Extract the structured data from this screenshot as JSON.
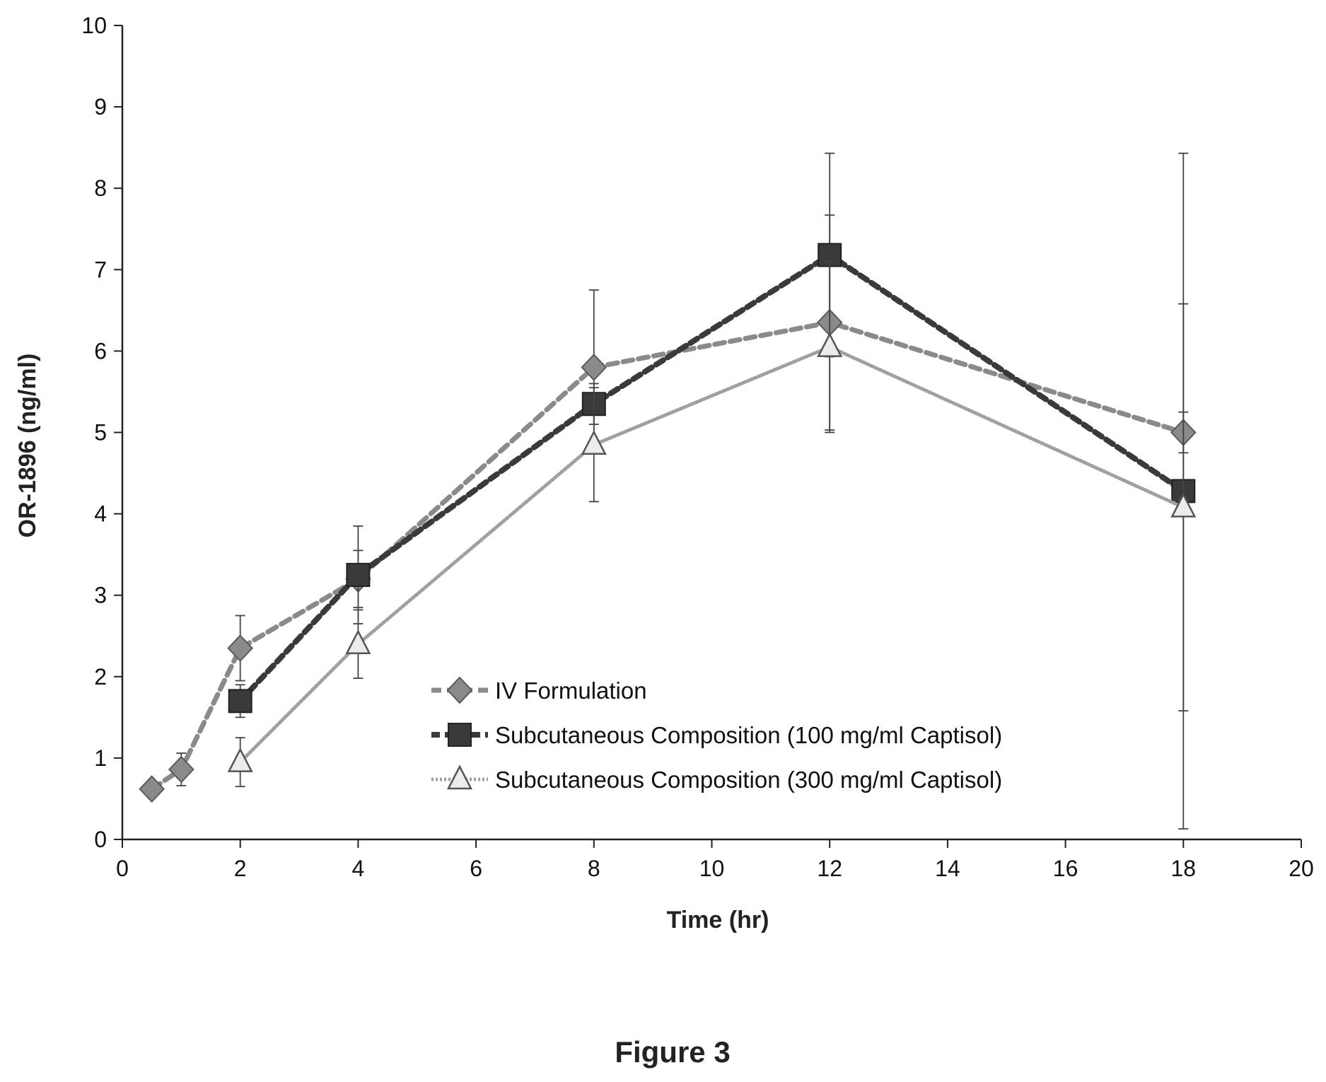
{
  "figure_caption": "Figure 3",
  "chart_data": {
    "type": "line",
    "title": "",
    "xlabel": "Time (hr)",
    "ylabel": "OR-1896 (ng/ml)",
    "xlim": [
      0,
      20
    ],
    "ylim": [
      0,
      10
    ],
    "x_ticks": [
      "0",
      "2",
      "4",
      "6",
      "8",
      "10",
      "12",
      "14",
      "16",
      "18",
      "20"
    ],
    "y_ticks": [
      "0",
      "1",
      "2",
      "3",
      "4",
      "5",
      "6",
      "7",
      "8",
      "9",
      "10"
    ],
    "grid": false,
    "legend_position": "inside-lower-center",
    "series": [
      {
        "name": "IV Formulation",
        "marker": "diamond",
        "line_style": "dashed",
        "color": "#8a8a8a",
        "points": [
          {
            "x": 0.5,
            "y": 0.62,
            "err": 0
          },
          {
            "x": 1,
            "y": 0.86,
            "err": 0.2
          },
          {
            "x": 2,
            "y": 2.35,
            "err": 0.4
          },
          {
            "x": 4,
            "y": 3.2,
            "err": 0.35
          },
          {
            "x": 8,
            "y": 5.8,
            "err": 0.95
          },
          {
            "x": 12,
            "y": 6.35,
            "err": 1.32
          },
          {
            "x": 18,
            "y": 5.0,
            "err": 0.25
          }
        ]
      },
      {
        "name": "Subcutaneous Composition (100 mg/ml Captisol)",
        "marker": "square",
        "line_style": "dashed-bold",
        "color": "#3a3a3a",
        "points": [
          {
            "x": 2,
            "y": 1.7,
            "err": 0.2
          },
          {
            "x": 4,
            "y": 3.25,
            "err": 0.6
          },
          {
            "x": 8,
            "y": 5.35,
            "err": 0.25
          },
          {
            "x": 12,
            "y": 7.18,
            "err": 1.25
          },
          {
            "x": 18,
            "y": 4.28,
            "err": 4.15
          }
        ]
      },
      {
        "name": "Subcutaneous Composition (300 mg/ml Captisol)",
        "marker": "triangle",
        "line_style": "dotted",
        "color": "#a0a0a0",
        "points": [
          {
            "x": 2,
            "y": 0.95,
            "err": 0.3
          },
          {
            "x": 4,
            "y": 2.4,
            "err": 0.42
          },
          {
            "x": 8,
            "y": 4.85,
            "err": 0.7
          },
          {
            "x": 12,
            "y": 6.05,
            "err": 1.05
          },
          {
            "x": 18,
            "y": 4.08,
            "err": 2.5
          }
        ]
      }
    ]
  }
}
